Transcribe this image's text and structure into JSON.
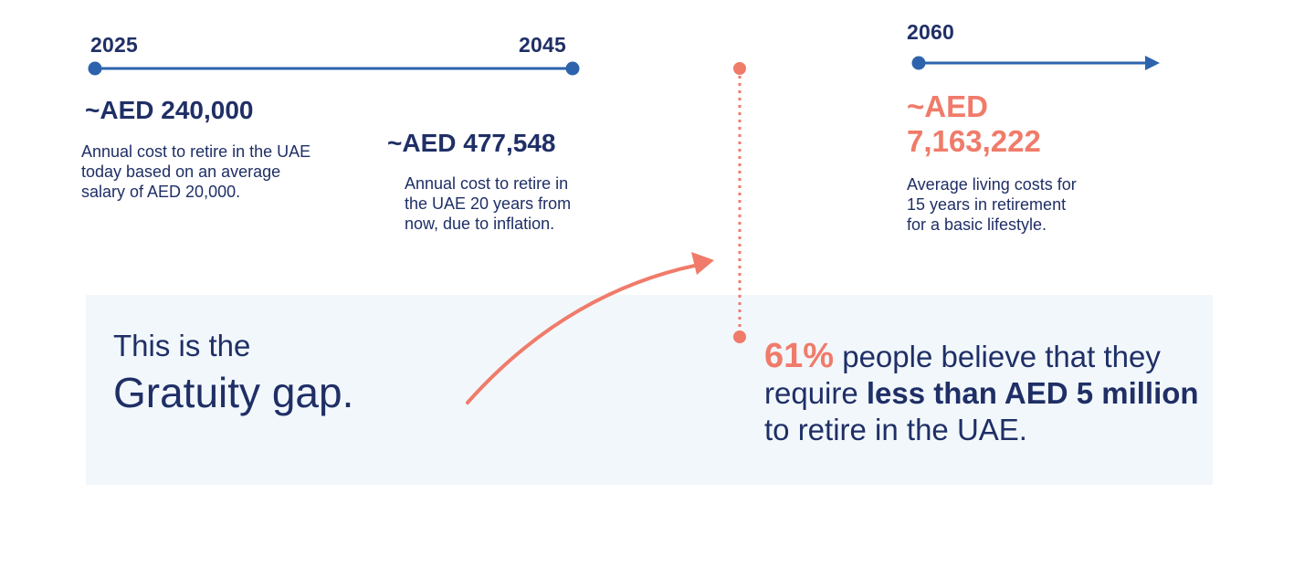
{
  "timeline": {
    "milestones": [
      {
        "year": "2025",
        "amount": "~AED 240,000",
        "description_lines": [
          "Annual cost to retire in the UAE",
          "today based on an average",
          "salary of AED 20,000."
        ]
      },
      {
        "year": "2045",
        "amount": "~AED 477,548",
        "description_lines": [
          "Annual cost to retire in",
          "the UAE 20 years from",
          "now, due to inflation."
        ]
      },
      {
        "year": "2060",
        "amount_lines": [
          "~AED",
          "7,163,222"
        ],
        "description_lines": [
          "Average living costs for",
          "15 years in retirement",
          "for a basic lifestyle."
        ]
      }
    ]
  },
  "gap": {
    "line1": "This is the",
    "line2": "Gratuity gap."
  },
  "stat": {
    "percent": "61%",
    "text_before": " people believe that they require ",
    "highlight": "less than AED 5 million",
    "text_after": " to retire in the UAE."
  },
  "colors": {
    "navy": "#1f2f66",
    "blue": "#2d63ad",
    "coral": "#f07b6a",
    "panel": "#f2f7fb"
  }
}
